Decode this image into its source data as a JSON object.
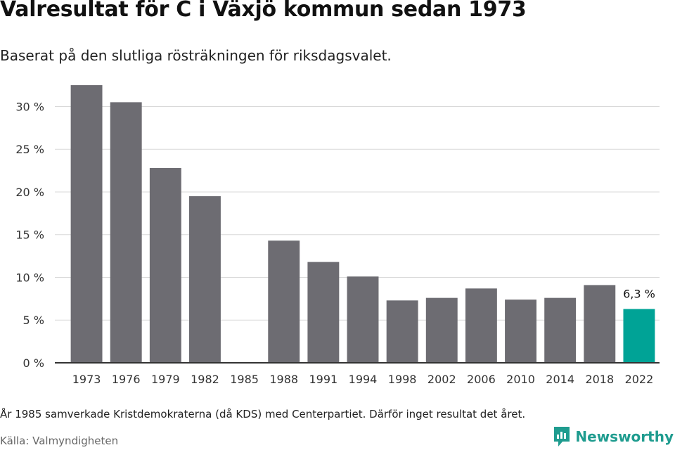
{
  "title": "Valresultat för C i Växjö kommun sedan 1973",
  "subtitle": "Baserat på den slutliga rösträkningen för riksdagsvalet.",
  "footnote": "År 1985 samverkade Kristdemokraterna (då KDS) med Centerpartiet. Därför inget resultat det året.",
  "source": "Källa: Valmyndigheten",
  "brand": {
    "name": "Newsworthy",
    "icon": "newsworthy-logo-icon",
    "color": "#1f9c8f"
  },
  "colors": {
    "bar": "#6d6c72",
    "highlight": "#00a396",
    "grid": "#d9d9d9",
    "axis": "#333333"
  },
  "chart_data": {
    "type": "bar",
    "categories": [
      "1973",
      "1976",
      "1979",
      "1982",
      "1985",
      "1988",
      "1991",
      "1994",
      "1998",
      "2002",
      "2006",
      "2010",
      "2014",
      "2018",
      "2022"
    ],
    "values": [
      32.5,
      30.5,
      22.8,
      19.5,
      null,
      14.3,
      11.8,
      10.1,
      7.3,
      7.6,
      8.7,
      7.4,
      7.6,
      9.1,
      6.3
    ],
    "highlight_index": 14,
    "data_labels": [
      {
        "index": 14,
        "text": "6,3 %"
      }
    ],
    "yticks": [
      {
        "value": 0,
        "label": "0 %"
      },
      {
        "value": 5,
        "label": "5 %"
      },
      {
        "value": 10,
        "label": "10 %"
      },
      {
        "value": 15,
        "label": "15 %"
      },
      {
        "value": 20,
        "label": "20 %"
      },
      {
        "value": 25,
        "label": "25 %"
      },
      {
        "value": 30,
        "label": "30 %"
      }
    ],
    "ylim": [
      0,
      33
    ],
    "grid": true,
    "legend": "none"
  }
}
